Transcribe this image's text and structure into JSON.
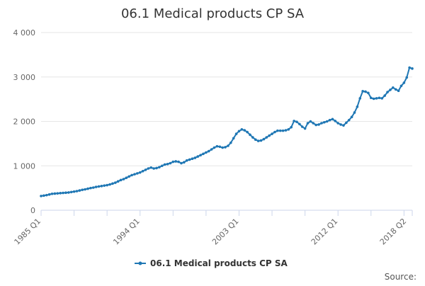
{
  "chart_data": {
    "type": "line",
    "title": "06.1 Medical products CP SA",
    "xlabel": "",
    "ylabel": "",
    "ylim": [
      0,
      4000
    ],
    "yticks": [
      0,
      1000,
      2000,
      3000,
      4000
    ],
    "ytick_labels": [
      "0",
      "1 000",
      "2 000",
      "3 000",
      "4 000"
    ],
    "x_start": "1985 Q1",
    "x_end": "2018 Q2",
    "xtick_labels": [
      {
        "label": "1985 Q1",
        "index": 0
      },
      {
        "label": "1994 Q1",
        "index": 36
      },
      {
        "label": "2003 Q1",
        "index": 72
      },
      {
        "label": "2012 Q1",
        "index": 108
      },
      {
        "label": "2018 Q2",
        "index": 133
      }
    ],
    "grid": true,
    "legend_position": "bottom-center",
    "series": [
      {
        "name": "06.1 Medical products CP SA",
        "color": "#1f77b4",
        "values": [
          320,
          330,
          340,
          355,
          370,
          375,
          380,
          385,
          390,
          395,
          400,
          410,
          420,
          430,
          445,
          460,
          470,
          485,
          500,
          510,
          525,
          535,
          545,
          555,
          565,
          580,
          600,
          620,
          650,
          680,
          700,
          730,
          760,
          790,
          810,
          830,
          850,
          880,
          910,
          940,
          960,
          940,
          950,
          970,
          1000,
          1030,
          1040,
          1060,
          1090,
          1100,
          1090,
          1060,
          1080,
          1120,
          1140,
          1160,
          1180,
          1210,
          1240,
          1270,
          1300,
          1330,
          1370,
          1410,
          1440,
          1430,
          1410,
          1420,
          1450,
          1520,
          1620,
          1720,
          1780,
          1820,
          1800,
          1760,
          1700,
          1640,
          1590,
          1560,
          1570,
          1600,
          1640,
          1680,
          1720,
          1760,
          1790,
          1790,
          1790,
          1800,
          1820,
          1870,
          2010,
          1990,
          1940,
          1880,
          1840,
          1960,
          2000,
          1960,
          1920,
          1930,
          1960,
          1980,
          2000,
          2030,
          2050,
          2010,
          1960,
          1930,
          1910,
          1970,
          2030,
          2100,
          2200,
          2330,
          2520,
          2680,
          2670,
          2640,
          2530,
          2510,
          2520,
          2530,
          2520,
          2580,
          2660,
          2710,
          2760,
          2720,
          2690,
          2800,
          2870,
          2990,
          3210,
          3190
        ]
      }
    ]
  },
  "credits": "Source:"
}
